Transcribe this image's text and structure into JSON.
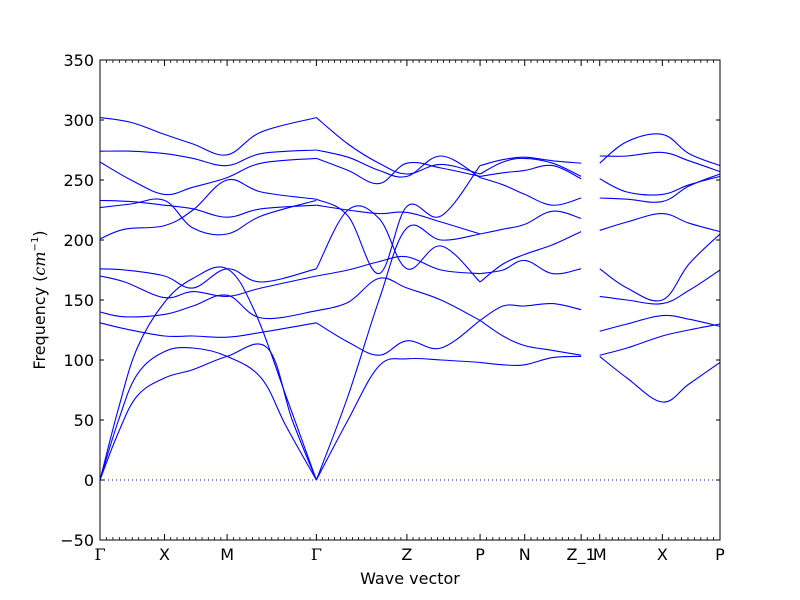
{
  "chart_data": {
    "type": "line",
    "title": "",
    "xlabel": "Wave vector",
    "ylabel": "Frequency (cm⁻¹)",
    "ylabel_prefix": "Frequency (",
    "ylabel_unit": "cm",
    "ylabel_exp": "−1",
    "ylabel_suffix": ")",
    "ylim": [
      -50,
      350
    ],
    "yticks": [
      -50,
      0,
      50,
      100,
      150,
      200,
      250,
      300,
      350
    ],
    "xlim": [
      0,
      1
    ],
    "high_symmetry_points": [
      {
        "label": "Γ",
        "x": 0.0
      },
      {
        "label": "X",
        "x": 0.104
      },
      {
        "label": "M",
        "x": 0.205
      },
      {
        "label": "Γ",
        "x": 0.349
      },
      {
        "label": "Z",
        "x": 0.495
      },
      {
        "label": "P",
        "x": 0.613
      },
      {
        "label": "N",
        "x": 0.685
      },
      {
        "label": "Z_1",
        "x": 0.776
      },
      {
        "label": "M",
        "x": 0.806
      },
      {
        "label": "X",
        "x": 0.907
      },
      {
        "label": "P",
        "x": 1.0
      }
    ],
    "zero_line": {
      "y": 0,
      "style": "dotted"
    },
    "line_color": "#0000ff",
    "grid": false,
    "series": [
      {
        "x": [
          0,
          0.03,
          0.06,
          0.104,
          0.15,
          0.205,
          0.26,
          0.3,
          0.349
        ],
        "values": [
          0,
          50,
          88,
          107,
          110,
          103,
          85,
          45,
          0
        ]
      },
      {
        "x": [
          0,
          0.03,
          0.06,
          0.104,
          0.15,
          0.205,
          0.25,
          0.3,
          0.349
        ],
        "values": [
          0,
          60,
          110,
          148,
          168,
          176,
          140,
          70,
          0
        ]
      },
      {
        "x": [
          0,
          0.03,
          0.06,
          0.104,
          0.15,
          0.205,
          0.27,
          0.31,
          0.349
        ],
        "values": [
          0,
          40,
          70,
          85,
          92,
          103,
          110,
          50,
          0
        ]
      },
      {
        "x": [
          0,
          0.04,
          0.104,
          0.15,
          0.205,
          0.26,
          0.349
        ],
        "values": [
          131,
          126,
          120,
          120,
          119,
          123,
          131
        ]
      },
      {
        "x": [
          0,
          0.04,
          0.104,
          0.15,
          0.205,
          0.26,
          0.349
        ],
        "values": [
          140,
          136,
          138,
          145,
          154,
          135,
          141
        ]
      },
      {
        "x": [
          0,
          0.04,
          0.104,
          0.15,
          0.205,
          0.26,
          0.349
        ],
        "values": [
          170,
          165,
          152,
          157,
          153,
          160,
          170
        ]
      },
      {
        "x": [
          0,
          0.04,
          0.104,
          0.15,
          0.205,
          0.26,
          0.349
        ],
        "values": [
          176,
          175,
          170,
          160,
          176,
          165,
          176
        ]
      },
      {
        "x": [
          0,
          0.04,
          0.104,
          0.15,
          0.205,
          0.26,
          0.349
        ],
        "values": [
          201,
          209,
          212,
          225,
          250,
          240,
          234
        ]
      },
      {
        "x": [
          0,
          0.05,
          0.104,
          0.15,
          0.205,
          0.26,
          0.349
        ],
        "values": [
          227,
          230,
          233,
          210,
          205,
          220,
          233
        ]
      },
      {
        "x": [
          0,
          0.05,
          0.104,
          0.15,
          0.205,
          0.26,
          0.349
        ],
        "values": [
          233,
          232,
          229,
          226,
          219,
          226,
          229
        ]
      },
      {
        "x": [
          0,
          0.05,
          0.104,
          0.15,
          0.205,
          0.26,
          0.349
        ],
        "values": [
          265,
          250,
          238,
          244,
          252,
          264,
          268
        ]
      },
      {
        "x": [
          0,
          0.05,
          0.104,
          0.15,
          0.205,
          0.26,
          0.349
        ],
        "values": [
          274,
          274,
          272,
          268,
          262,
          272,
          275
        ]
      },
      {
        "x": [
          0,
          0.05,
          0.104,
          0.15,
          0.205,
          0.26,
          0.349
        ],
        "values": [
          302,
          298,
          288,
          280,
          271,
          290,
          302
        ]
      },
      {
        "x": [
          0.349,
          0.4,
          0.45,
          0.495,
          0.55,
          0.613
        ],
        "values": [
          0,
          50,
          95,
          101,
          100,
          98
        ]
      },
      {
        "x": [
          0.349,
          0.4,
          0.45,
          0.495,
          0.55,
          0.613
        ],
        "values": [
          0,
          70,
          150,
          210,
          200,
          205
        ]
      },
      {
        "x": [
          0.349,
          0.4,
          0.45,
          0.495,
          0.55,
          0.613
        ],
        "values": [
          131,
          115,
          104,
          116,
          110,
          133
        ]
      },
      {
        "x": [
          0.349,
          0.4,
          0.45,
          0.495,
          0.55,
          0.613
        ],
        "values": [
          141,
          148,
          168,
          160,
          150,
          133
        ]
      },
      {
        "x": [
          0.349,
          0.4,
          0.45,
          0.495,
          0.55,
          0.613
        ],
        "values": [
          170,
          175,
          182,
          186,
          175,
          172
        ]
      },
      {
        "x": [
          0.349,
          0.4,
          0.45,
          0.495,
          0.55,
          0.613
        ],
        "values": [
          176,
          225,
          218,
          176,
          195,
          165
        ]
      },
      {
        "x": [
          0.349,
          0.4,
          0.45,
          0.495,
          0.55,
          0.613
        ],
        "values": [
          229,
          225,
          222,
          223,
          215,
          205
        ]
      },
      {
        "x": [
          0.349,
          0.4,
          0.45,
          0.495,
          0.55,
          0.613
        ],
        "values": [
          234,
          220,
          172,
          228,
          220,
          262
        ]
      },
      {
        "x": [
          0.349,
          0.4,
          0.45,
          0.495,
          0.55,
          0.613
        ],
        "values": [
          268,
          258,
          247,
          264,
          260,
          253
        ]
      },
      {
        "x": [
          0.349,
          0.4,
          0.45,
          0.495,
          0.55,
          0.613
        ],
        "values": [
          275,
          269,
          258,
          253,
          270,
          252
        ]
      },
      {
        "x": [
          0.349,
          0.4,
          0.45,
          0.495,
          0.55,
          0.613
        ],
        "values": [
          302,
          280,
          264,
          255,
          263,
          255
        ]
      },
      {
        "x": [
          0.613,
          0.65,
          0.685,
          0.73,
          0.776
        ],
        "values": [
          98,
          96,
          96,
          102,
          103
        ]
      },
      {
        "x": [
          0.613,
          0.65,
          0.685,
          0.73,
          0.776
        ],
        "values": [
          133,
          120,
          112,
          108,
          104
        ]
      },
      {
        "x": [
          0.613,
          0.65,
          0.685,
          0.73,
          0.776
        ],
        "values": [
          133,
          145,
          145,
          147,
          142
        ]
      },
      {
        "x": [
          0.613,
          0.65,
          0.685,
          0.73,
          0.776
        ],
        "values": [
          172,
          175,
          183,
          172,
          176
        ]
      },
      {
        "x": [
          0.613,
          0.65,
          0.685,
          0.73,
          0.776
        ],
        "values": [
          165,
          180,
          188,
          196,
          207
        ]
      },
      {
        "x": [
          0.613,
          0.65,
          0.685,
          0.73,
          0.776
        ],
        "values": [
          205,
          209,
          213,
          224,
          218
        ]
      },
      {
        "x": [
          0.613,
          0.65,
          0.685,
          0.73,
          0.776
        ],
        "values": [
          252,
          246,
          238,
          229,
          235
        ]
      },
      {
        "x": [
          0.613,
          0.65,
          0.685,
          0.73,
          0.776
        ],
        "values": [
          253,
          256,
          258,
          262,
          251
        ]
      },
      {
        "x": [
          0.613,
          0.65,
          0.685,
          0.73,
          0.776
        ],
        "values": [
          255,
          265,
          268,
          264,
          253
        ]
      },
      {
        "x": [
          0.613,
          0.65,
          0.685,
          0.73,
          0.776
        ],
        "values": [
          262,
          267,
          269,
          266,
          264
        ]
      },
      {
        "x": [
          0.806,
          0.85,
          0.907,
          0.95,
          1.0
        ],
        "values": [
          103,
          85,
          65,
          80,
          98
        ]
      },
      {
        "x": [
          0.806,
          0.85,
          0.907,
          0.95,
          1.0
        ],
        "values": [
          104,
          110,
          120,
          125,
          130
        ]
      },
      {
        "x": [
          0.806,
          0.85,
          0.907,
          0.95,
          1.0
        ],
        "values": [
          124,
          130,
          137,
          134,
          128
        ]
      },
      {
        "x": [
          0.806,
          0.85,
          0.907,
          0.95,
          1.0
        ],
        "values": [
          153,
          150,
          147,
          158,
          175
        ]
      },
      {
        "x": [
          0.806,
          0.85,
          0.907,
          0.95,
          1.0
        ],
        "values": [
          176,
          160,
          150,
          180,
          205
        ]
      },
      {
        "x": [
          0.806,
          0.85,
          0.907,
          0.95,
          1.0
        ],
        "values": [
          208,
          215,
          222,
          214,
          207
        ]
      },
      {
        "x": [
          0.806,
          0.85,
          0.907,
          0.95,
          1.0
        ],
        "values": [
          235,
          234,
          232,
          245,
          255
        ]
      },
      {
        "x": [
          0.806,
          0.85,
          0.907,
          0.95,
          1.0
        ],
        "values": [
          251,
          240,
          238,
          246,
          253
        ]
      },
      {
        "x": [
          0.806,
          0.85,
          0.907,
          0.95,
          1.0
        ],
        "values": [
          264,
          282,
          288,
          272,
          262
        ]
      },
      {
        "x": [
          0.806,
          0.85,
          0.907,
          0.95,
          1.0
        ],
        "values": [
          270,
          270,
          273,
          266,
          257
        ]
      }
    ]
  }
}
